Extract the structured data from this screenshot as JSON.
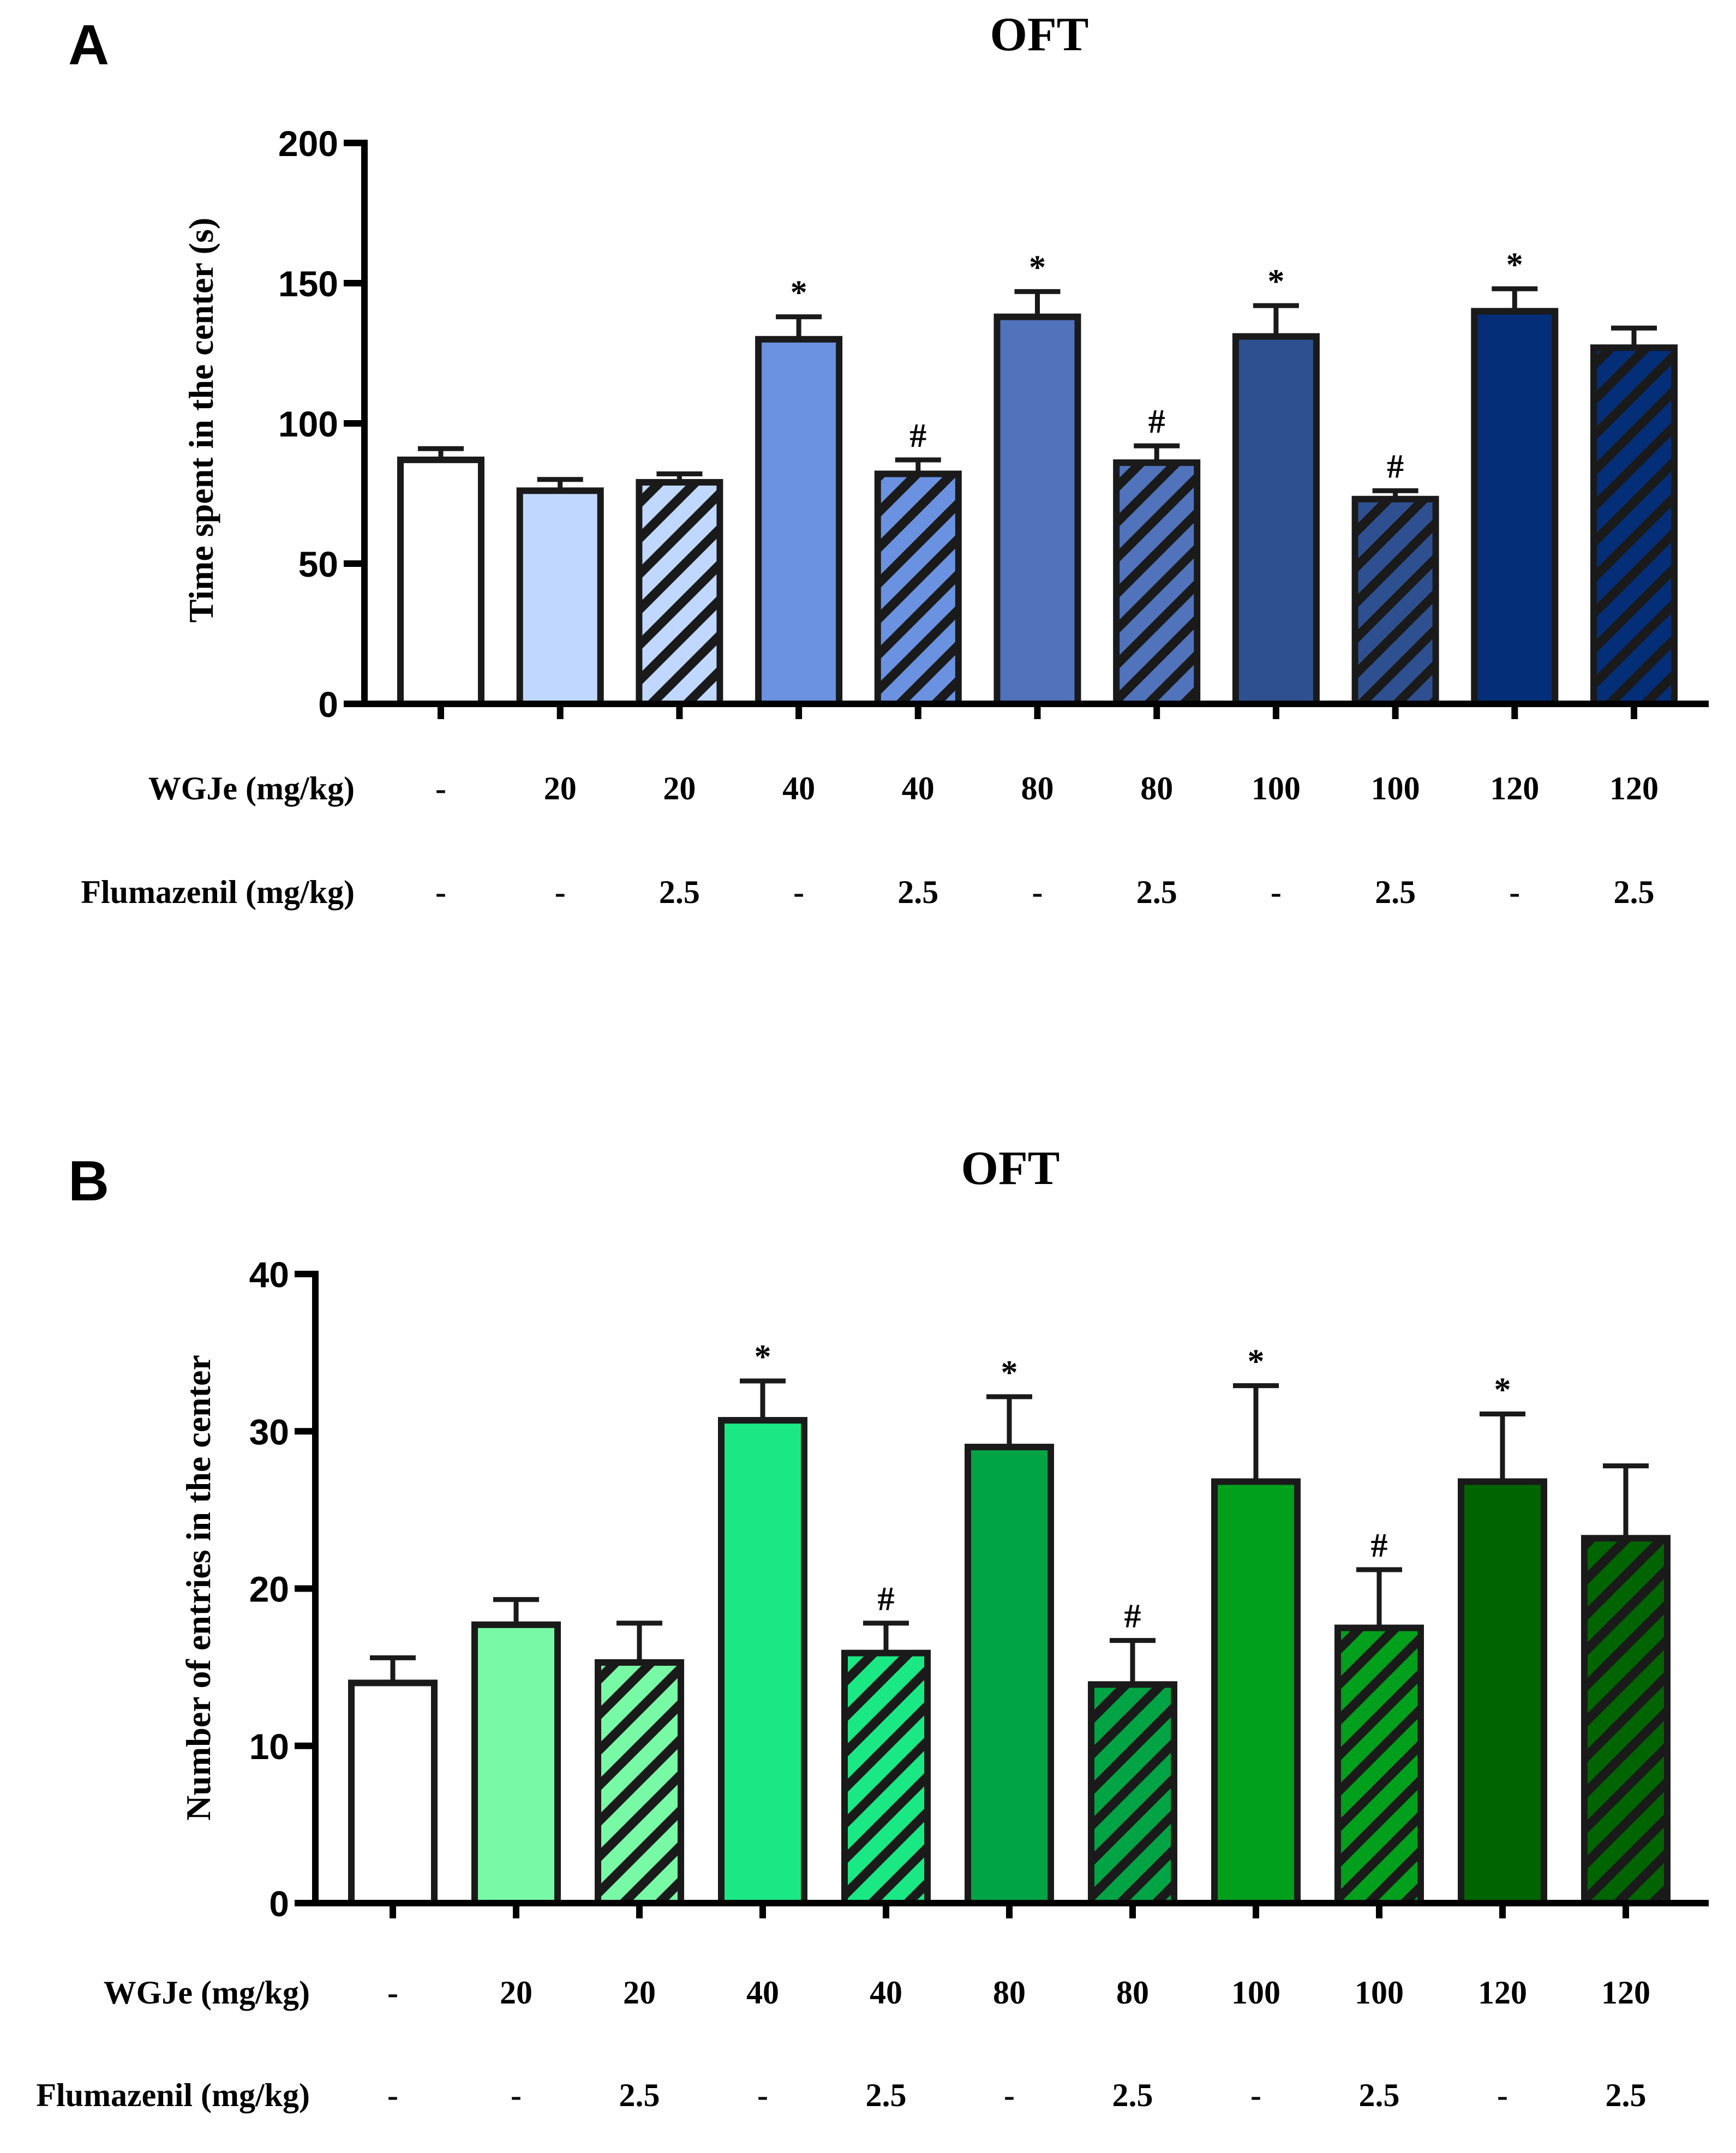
{
  "chart_data": [
    {
      "panel": "A",
      "type": "bar",
      "title": "OFT",
      "ylabel": "Time spent in the center (s)",
      "xlabel": "",
      "ylim": [
        0,
        200
      ],
      "yticks": [
        0,
        50,
        100,
        150,
        200
      ],
      "values": [
        87,
        76,
        79,
        130,
        82,
        138,
        86,
        131,
        73,
        140,
        127
      ],
      "errors": [
        4,
        4,
        3,
        8,
        5,
        9,
        6,
        11,
        3,
        8,
        7
      ],
      "significance": [
        "",
        "",
        "",
        "*",
        "#",
        "*",
        "#",
        "*",
        "#",
        "*",
        ""
      ],
      "hatched": [
        false,
        false,
        true,
        false,
        true,
        false,
        true,
        false,
        true,
        false,
        true
      ],
      "colors": [
        "#ffffff",
        "#c0d8ff",
        "#c0d8ff",
        "#6a92e0",
        "#6a92e0",
        "#5073bb",
        "#5073bb",
        "#2f5090",
        "#2f5090",
        "#042e78",
        "#042e78"
      ],
      "rows": [
        {
          "label": "WGJe (mg/kg)",
          "values": [
            "-",
            "20",
            "20",
            "40",
            "40",
            "80",
            "80",
            "100",
            "100",
            "120",
            "120"
          ]
        },
        {
          "label": "Flumazenil (mg/kg)",
          "values": [
            "-",
            "-",
            "2.5",
            "-",
            "2.5",
            "-",
            "2.5",
            "-",
            "2.5",
            "-",
            "2.5"
          ]
        }
      ]
    },
    {
      "panel": "B",
      "type": "bar",
      "title": "OFT",
      "ylabel": "Number of entries in the center",
      "xlabel": "",
      "ylim": [
        0,
        40
      ],
      "yticks": [
        0,
        10,
        20,
        30,
        40
      ],
      "values": [
        14,
        17.7,
        15.3,
        30.7,
        15.9,
        29,
        13.9,
        26.8,
        17.5,
        26.8,
        23.2
      ],
      "errors": [
        1.6,
        1.6,
        2.5,
        2.5,
        1.9,
        3.2,
        2.8,
        6.1,
        3.7,
        4.3,
        4.6
      ],
      "significance": [
        "",
        "",
        "",
        "*",
        "#",
        "*",
        "#",
        "*",
        "#",
        "*",
        ""
      ],
      "hatched": [
        false,
        false,
        true,
        false,
        true,
        false,
        true,
        false,
        true,
        false,
        true
      ],
      "colors": [
        "#ffffff",
        "#78f9a6",
        "#78f9a6",
        "#1ae884",
        "#1ae884",
        "#00a444",
        "#00a444",
        "#00a01c",
        "#00a01c",
        "#006400",
        "#006400"
      ],
      "rows": [
        {
          "label": "WGJe (mg/kg)",
          "values": [
            "-",
            "20",
            "20",
            "40",
            "40",
            "80",
            "80",
            "100",
            "100",
            "120",
            "120"
          ]
        },
        {
          "label": "Flumazenil (mg/kg)",
          "values": [
            "-",
            "-",
            "2.5",
            "-",
            "2.5",
            "-",
            "2.5",
            "-",
            "2.5",
            "-",
            "2.5"
          ]
        }
      ]
    }
  ]
}
